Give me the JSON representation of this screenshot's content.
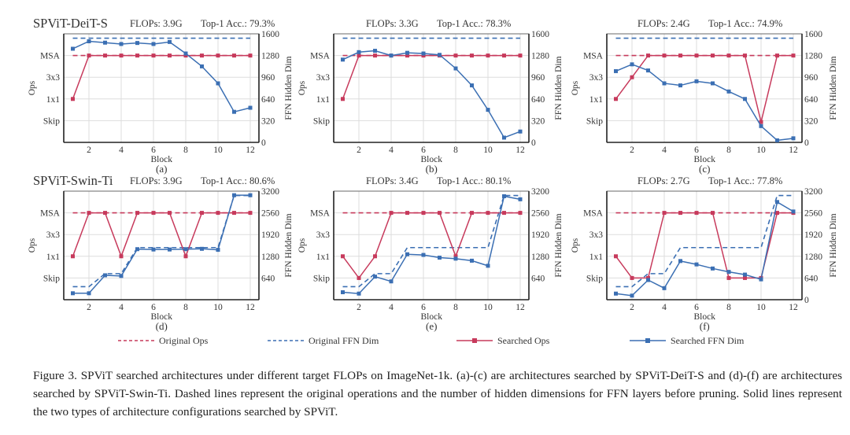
{
  "colors": {
    "ops": "#c73a5c",
    "ffn": "#3b6fb3",
    "grid": "#dddddd"
  },
  "legend": [
    {
      "label": "Original Ops",
      "series": "ops",
      "style": "dashed"
    },
    {
      "label": "Original FFN Dim",
      "series": "ffn",
      "style": "dashed"
    },
    {
      "label": "Searched Ops",
      "series": "ops",
      "style": "solid"
    },
    {
      "label": "Searched FFN Dim",
      "series": "ffn",
      "style": "solid"
    }
  ],
  "caption": "Figure 3. SPViT searched architectures under different target FLOPs on ImageNet-1k. (a)-(c) are architectures searched by SPViT-DeiT-S and (d)-(f) are architectures searched by SPViT-Swin-Ti. Dashed lines represent the original operations and the number of hidden dimensions for FFN layers before pruning. Solid lines represent the two types of architecture configurations searched by SPViT.",
  "chart_data": [
    {
      "type": "line",
      "panel_label": "(a)",
      "model": "SPViT-DeiT-S",
      "flops": "FLOPs: 3.9G",
      "acc": "Top-1 Acc.: 79.3%",
      "xlabel": "Block",
      "ylabel": "Ops",
      "y2label": "FFN Hidden Dim",
      "ylim": [
        0,
        1600
      ],
      "x": [
        1,
        2,
        3,
        4,
        5,
        6,
        7,
        8,
        9,
        10,
        11,
        12
      ],
      "xticks": [
        2,
        4,
        6,
        8,
        10,
        12
      ],
      "ops_ticks": [
        {
          "label": "Skip",
          "value": 320
        },
        {
          "label": "1x1",
          "value": 640
        },
        {
          "label": "3x3",
          "value": 960
        },
        {
          "label": "MSA",
          "value": 1280
        }
      ],
      "right_ticks": [
        0,
        320,
        640,
        960,
        1280,
        1600
      ],
      "original_ops": [
        1280,
        1280,
        1280,
        1280,
        1280,
        1280,
        1280,
        1280,
        1280,
        1280,
        1280,
        1280
      ],
      "original_ffn": [
        1536,
        1536,
        1536,
        1536,
        1536,
        1536,
        1536,
        1536,
        1536,
        1536,
        1536,
        1536
      ],
      "searched_ops": [
        640,
        1280,
        1280,
        1280,
        1280,
        1280,
        1280,
        1280,
        1280,
        1280,
        1280,
        1280
      ],
      "searched_ffn": [
        1380,
        1490,
        1470,
        1450,
        1465,
        1450,
        1480,
        1310,
        1120,
        870,
        450,
        510
      ]
    },
    {
      "type": "line",
      "panel_label": "(b)",
      "model": "",
      "flops": "FLOPs: 3.3G",
      "acc": "Top-1 Acc.: 78.3%",
      "xlabel": "Block",
      "ylabel": "Ops",
      "y2label": "FFN Hidden Dim",
      "ylim": [
        0,
        1600
      ],
      "x": [
        1,
        2,
        3,
        4,
        5,
        6,
        7,
        8,
        9,
        10,
        11,
        12
      ],
      "xticks": [
        2,
        4,
        6,
        8,
        10,
        12
      ],
      "ops_ticks": [
        {
          "label": "Skip",
          "value": 320
        },
        {
          "label": "1x1",
          "value": 640
        },
        {
          "label": "3x3",
          "value": 960
        },
        {
          "label": "MSA",
          "value": 1280
        }
      ],
      "right_ticks": [
        0,
        320,
        640,
        960,
        1280,
        1600
      ],
      "original_ops": [
        1280,
        1280,
        1280,
        1280,
        1280,
        1280,
        1280,
        1280,
        1280,
        1280,
        1280,
        1280
      ],
      "original_ffn": [
        1536,
        1536,
        1536,
        1536,
        1536,
        1536,
        1536,
        1536,
        1536,
        1536,
        1536,
        1536
      ],
      "searched_ops": [
        640,
        1280,
        1280,
        1280,
        1280,
        1280,
        1280,
        1280,
        1280,
        1280,
        1280,
        1280
      ],
      "searched_ffn": [
        1220,
        1330,
        1350,
        1280,
        1320,
        1310,
        1290,
        1090,
        840,
        480,
        70,
        160
      ]
    },
    {
      "type": "line",
      "panel_label": "(c)",
      "model": "",
      "flops": "FLOPs: 2.4G",
      "acc": "Top-1 Acc.: 74.9%",
      "xlabel": "Block",
      "ylabel": "Ops",
      "y2label": "FFN Hidden Dim",
      "ylim": [
        0,
        1600
      ],
      "x": [
        1,
        2,
        3,
        4,
        5,
        6,
        7,
        8,
        9,
        10,
        11,
        12
      ],
      "xticks": [
        2,
        4,
        6,
        8,
        10,
        12
      ],
      "ops_ticks": [
        {
          "label": "Skip",
          "value": 320
        },
        {
          "label": "1x1",
          "value": 640
        },
        {
          "label": "3x3",
          "value": 960
        },
        {
          "label": "MSA",
          "value": 1280
        }
      ],
      "right_ticks": [
        0,
        320,
        640,
        960,
        1280,
        1600
      ],
      "original_ops": [
        1280,
        1280,
        1280,
        1280,
        1280,
        1280,
        1280,
        1280,
        1280,
        1280,
        1280,
        1280
      ],
      "original_ffn": [
        1536,
        1536,
        1536,
        1536,
        1536,
        1536,
        1536,
        1536,
        1536,
        1536,
        1536,
        1536
      ],
      "searched_ops": [
        640,
        960,
        1280,
        1280,
        1280,
        1280,
        1280,
        1280,
        1280,
        300,
        1280,
        1280
      ],
      "searched_ffn": [
        1050,
        1150,
        1060,
        870,
        840,
        900,
        870,
        750,
        640,
        240,
        30,
        60
      ]
    },
    {
      "type": "line",
      "panel_label": "(d)",
      "model": "SPViT-Swin-Ti",
      "flops": "FLOPs: 3.9G",
      "acc": "Top-1 Acc.: 80.6%",
      "xlabel": "Block",
      "ylabel": "Ops",
      "y2label": "FFN Hidden Dim",
      "ylim": [
        0,
        3200
      ],
      "x": [
        1,
        2,
        3,
        4,
        5,
        6,
        7,
        8,
        9,
        10,
        11,
        12
      ],
      "xticks": [
        2,
        4,
        6,
        8,
        10,
        12
      ],
      "ops_ticks": [
        {
          "label": "Skip",
          "value": 640
        },
        {
          "label": "1x1",
          "value": 1280
        },
        {
          "label": "3x3",
          "value": 1920
        },
        {
          "label": "MSA",
          "value": 2560
        }
      ],
      "right_ticks": [
        640,
        1280,
        1920,
        2560,
        3200
      ],
      "original_ops": [
        2560,
        2560,
        2560,
        2560,
        2560,
        2560,
        2560,
        2560,
        2560,
        2560,
        2560,
        2560
      ],
      "original_ffn": [
        384,
        384,
        768,
        768,
        1536,
        1536,
        1536,
        1536,
        1536,
        1536,
        3072,
        3072
      ],
      "searched_ops": [
        1280,
        2560,
        2560,
        1280,
        2560,
        2560,
        2560,
        1280,
        2560,
        2560,
        2560,
        2560
      ],
      "searched_ffn": [
        190,
        190,
        720,
        700,
        1490,
        1480,
        1480,
        1490,
        1500,
        1470,
        3080,
        3080
      ]
    },
    {
      "type": "line",
      "panel_label": "(e)",
      "model": "",
      "flops": "FLOPs: 3.4G",
      "acc": "Top-1 Acc.: 80.1%",
      "xlabel": "Block",
      "ylabel": "Ops",
      "y2label": "FFN Hidden Dim",
      "ylim": [
        0,
        3200
      ],
      "x": [
        1,
        2,
        3,
        4,
        5,
        6,
        7,
        8,
        9,
        10,
        11,
        12
      ],
      "xticks": [
        2,
        4,
        6,
        8,
        10,
        12
      ],
      "ops_ticks": [
        {
          "label": "Skip",
          "value": 640
        },
        {
          "label": "1x1",
          "value": 1280
        },
        {
          "label": "3x3",
          "value": 1920
        },
        {
          "label": "MSA",
          "value": 2560
        }
      ],
      "right_ticks": [
        640,
        1280,
        1920,
        2560,
        3200
      ],
      "original_ops": [
        2560,
        2560,
        2560,
        2560,
        2560,
        2560,
        2560,
        2560,
        2560,
        2560,
        2560,
        2560
      ],
      "original_ffn": [
        384,
        384,
        768,
        768,
        1536,
        1536,
        1536,
        1536,
        1536,
        1536,
        3072,
        3072
      ],
      "searched_ops": [
        1280,
        640,
        1280,
        2560,
        2560,
        2560,
        2560,
        1280,
        2560,
        2560,
        2560,
        2560
      ],
      "searched_ffn": [
        220,
        180,
        680,
        540,
        1340,
        1320,
        1240,
        1210,
        1150,
        1000,
        3050,
        2960
      ]
    },
    {
      "type": "line",
      "panel_label": "(f)",
      "model": "",
      "flops": "FLOPs: 2.7G",
      "acc": "Top-1 Acc.: 77.8%",
      "xlabel": "Block",
      "ylabel": "Ops",
      "y2label": "FFN Hidden Dim",
      "ylim": [
        0,
        3200
      ],
      "x": [
        1,
        2,
        3,
        4,
        5,
        6,
        7,
        8,
        9,
        10,
        11,
        12
      ],
      "xticks": [
        2,
        4,
        6,
        8,
        10,
        12
      ],
      "ops_ticks": [
        {
          "label": "Skip",
          "value": 640
        },
        {
          "label": "1x1",
          "value": 1280
        },
        {
          "label": "3x3",
          "value": 1920
        },
        {
          "label": "MSA",
          "value": 2560
        }
      ],
      "right_ticks": [
        0,
        640,
        1280,
        1920,
        2560,
        3200
      ],
      "original_ops": [
        2560,
        2560,
        2560,
        2560,
        2560,
        2560,
        2560,
        2560,
        2560,
        2560,
        2560,
        2560
      ],
      "original_ffn": [
        384,
        384,
        768,
        768,
        1536,
        1536,
        1536,
        1536,
        1536,
        1536,
        3072,
        3072
      ],
      "searched_ops": [
        1280,
        640,
        640,
        2560,
        2560,
        2560,
        2560,
        640,
        640,
        640,
        2560,
        2560
      ],
      "searched_ffn": [
        180,
        120,
        580,
        340,
        1140,
        1040,
        920,
        820,
        740,
        600,
        2880,
        2600
      ]
    }
  ]
}
